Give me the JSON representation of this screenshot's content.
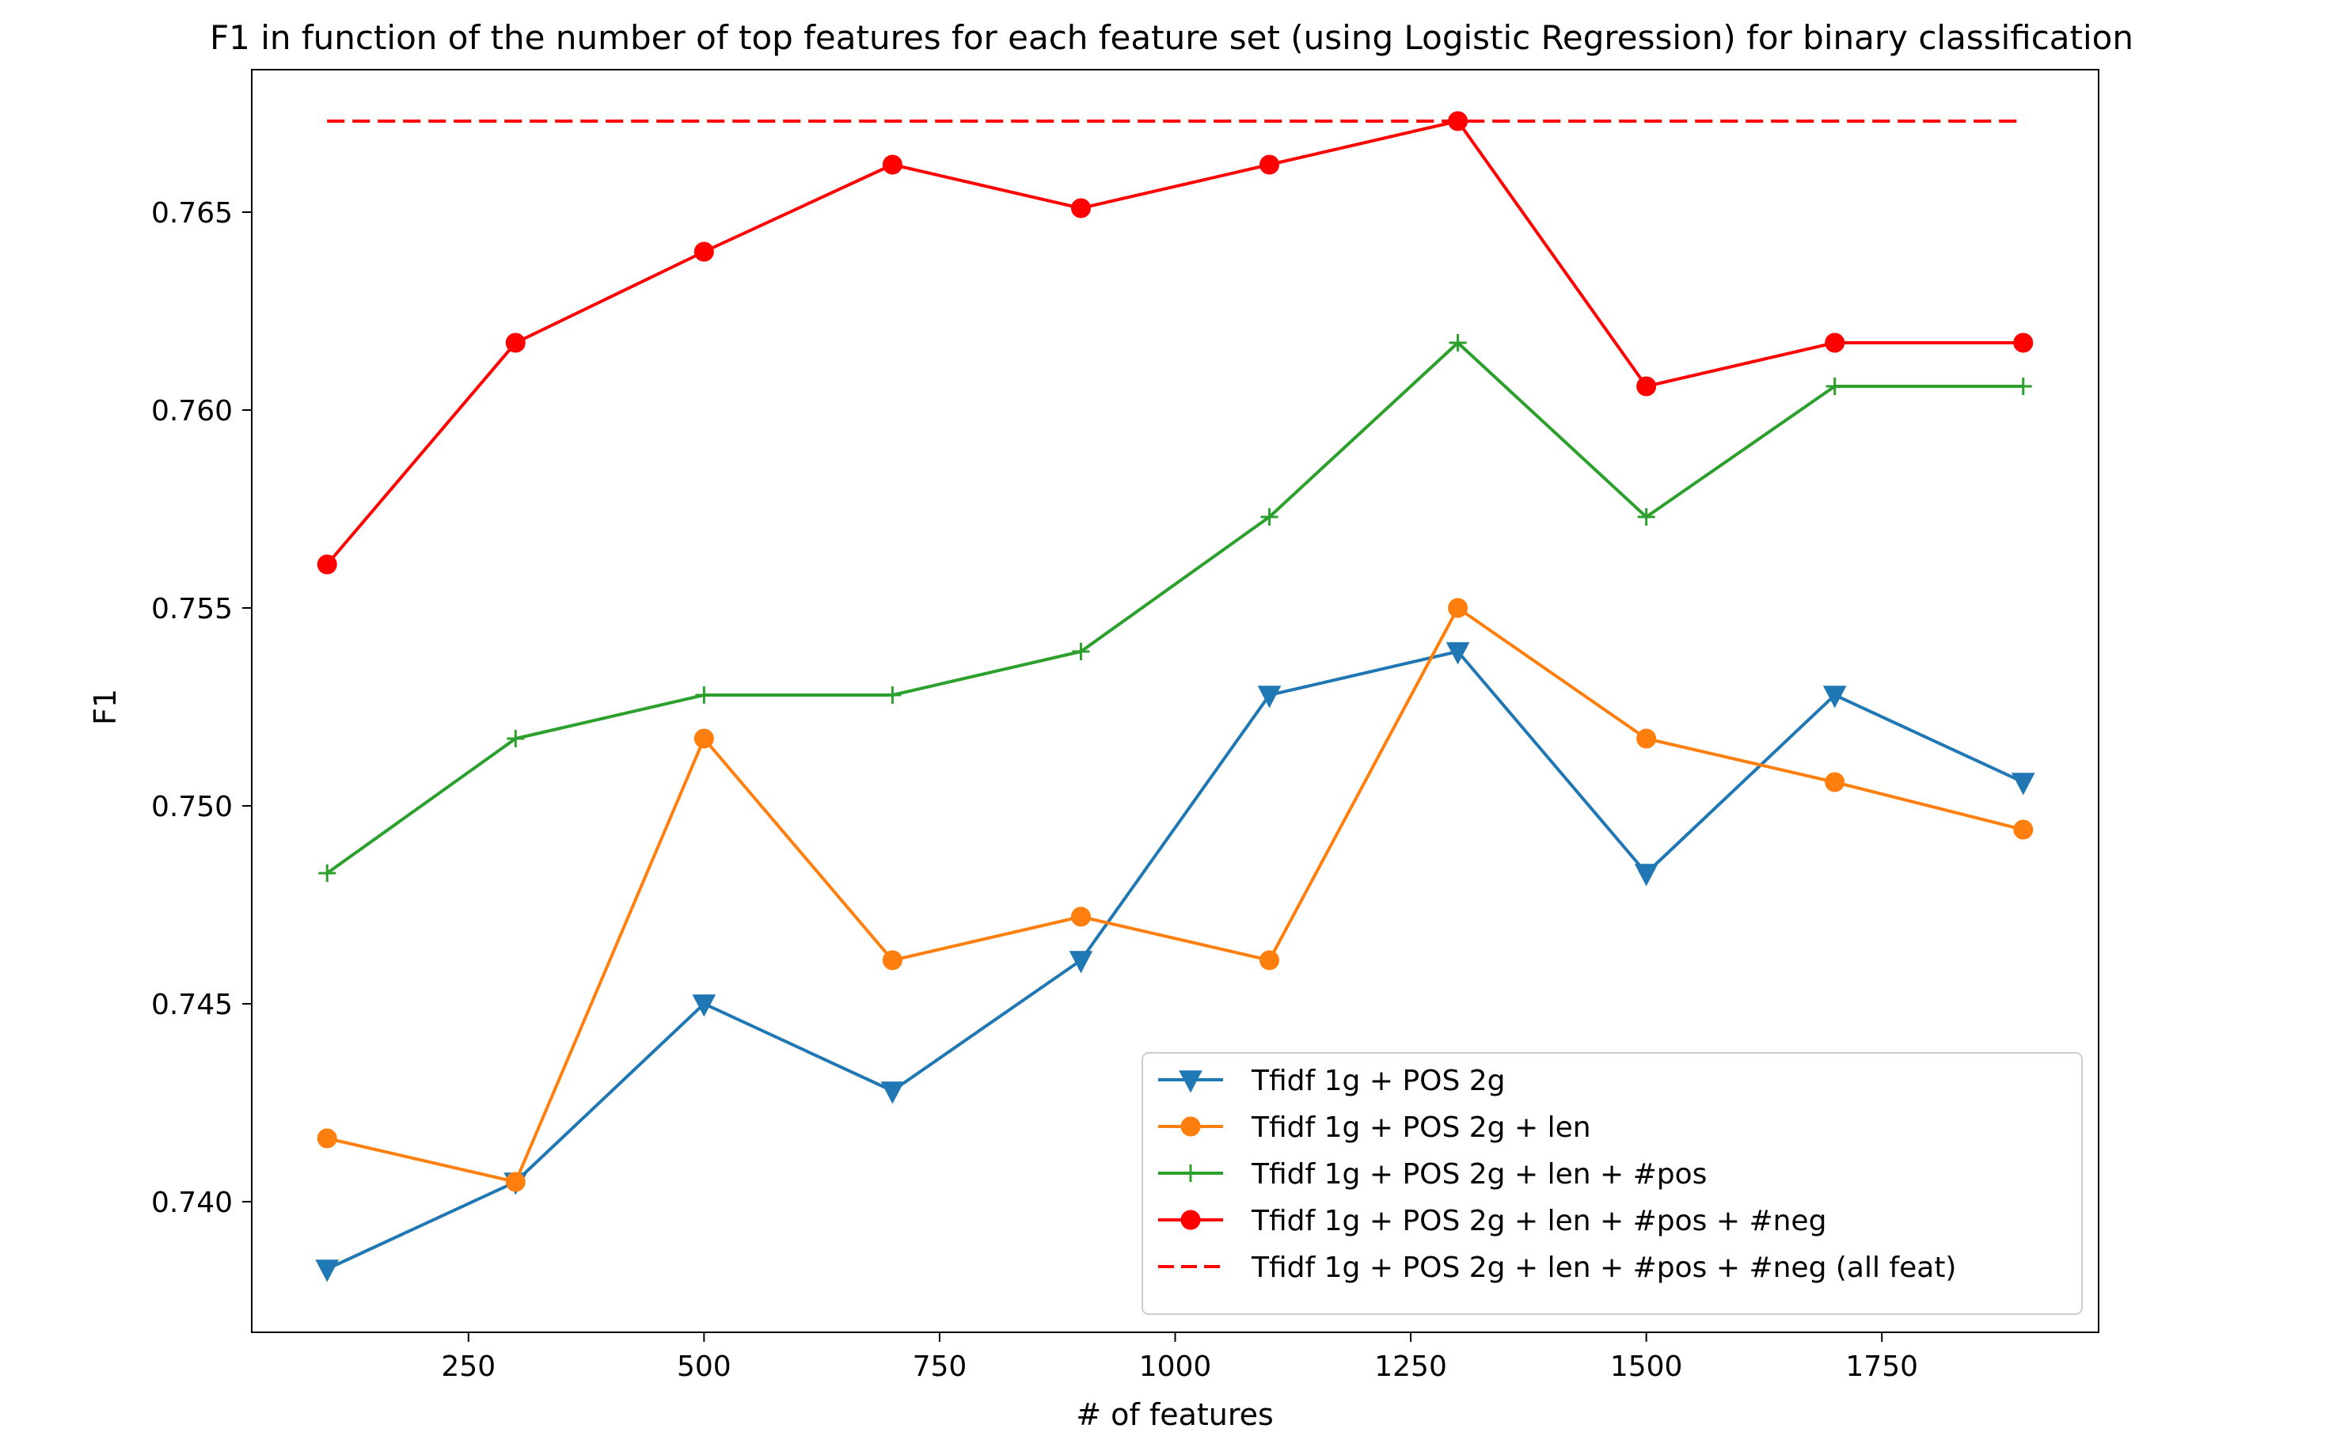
{
  "chart_data": {
    "type": "line",
    "title": "F1 in function of the number of top features for each feature set (using Logistic Regression) for binary classification",
    "xlabel": "# of features",
    "ylabel": "F1",
    "xlim": [
      20,
      1980
    ],
    "ylim": [
      0.7367,
      0.7686
    ],
    "x_ticks": [
      250,
      500,
      750,
      1000,
      1250,
      1500,
      1750
    ],
    "y_ticks": [
      0.74,
      0.745,
      0.75,
      0.755,
      0.76,
      0.765
    ],
    "x_tick_labels": [
      "250",
      "500",
      "750",
      "1000",
      "1250",
      "1500",
      "1750"
    ],
    "y_tick_labels": [
      "0.740",
      "0.745",
      "0.750",
      "0.755",
      "0.760",
      "0.765"
    ],
    "grid": false,
    "legend_position": "lower-right",
    "x": [
      100,
      300,
      500,
      700,
      900,
      1100,
      1300,
      1500,
      1700,
      1900
    ],
    "series": [
      {
        "name": "Tfidf 1g + POS 2g",
        "color": "#1f77b4",
        "marker": "triangle-down",
        "linestyle": "solid",
        "values": [
          0.7383,
          0.7405,
          0.745,
          0.7428,
          0.7461,
          0.7528,
          0.7539,
          0.7483,
          0.7528,
          0.7506
        ]
      },
      {
        "name": "Tfidf 1g + POS 2g + len",
        "color": "#ff7f0e",
        "marker": "circle",
        "linestyle": "solid",
        "values": [
          0.7416,
          0.7405,
          0.7517,
          0.7461,
          0.7472,
          0.7461,
          0.755,
          0.7517,
          0.7506,
          0.7494
        ]
      },
      {
        "name": "Tfidf 1g + POS 2g + len + #pos",
        "color": "#2ca02c",
        "marker": "plus",
        "linestyle": "solid",
        "values": [
          0.7483,
          0.7517,
          0.7528,
          0.7528,
          0.7539,
          0.7573,
          0.7617,
          0.7573,
          0.7606,
          0.7606
        ]
      },
      {
        "name": "Tfidf 1g + POS 2g + len + #pos + #neg",
        "color": "#ff0000",
        "marker": "circle",
        "linestyle": "solid",
        "values": [
          0.7561,
          0.7617,
          0.764,
          0.7662,
          0.7651,
          0.7662,
          0.7673,
          0.7606,
          0.7617,
          0.7617
        ]
      },
      {
        "name": "Tfidf 1g + POS 2g + len + #pos + #neg (all feat)",
        "color": "#ff0000",
        "marker": "none",
        "linestyle": "dashed",
        "values": [
          0.7673,
          0.7673,
          0.7673,
          0.7673,
          0.7673,
          0.7673,
          0.7673,
          0.7673,
          0.7673,
          0.7673
        ]
      }
    ]
  }
}
